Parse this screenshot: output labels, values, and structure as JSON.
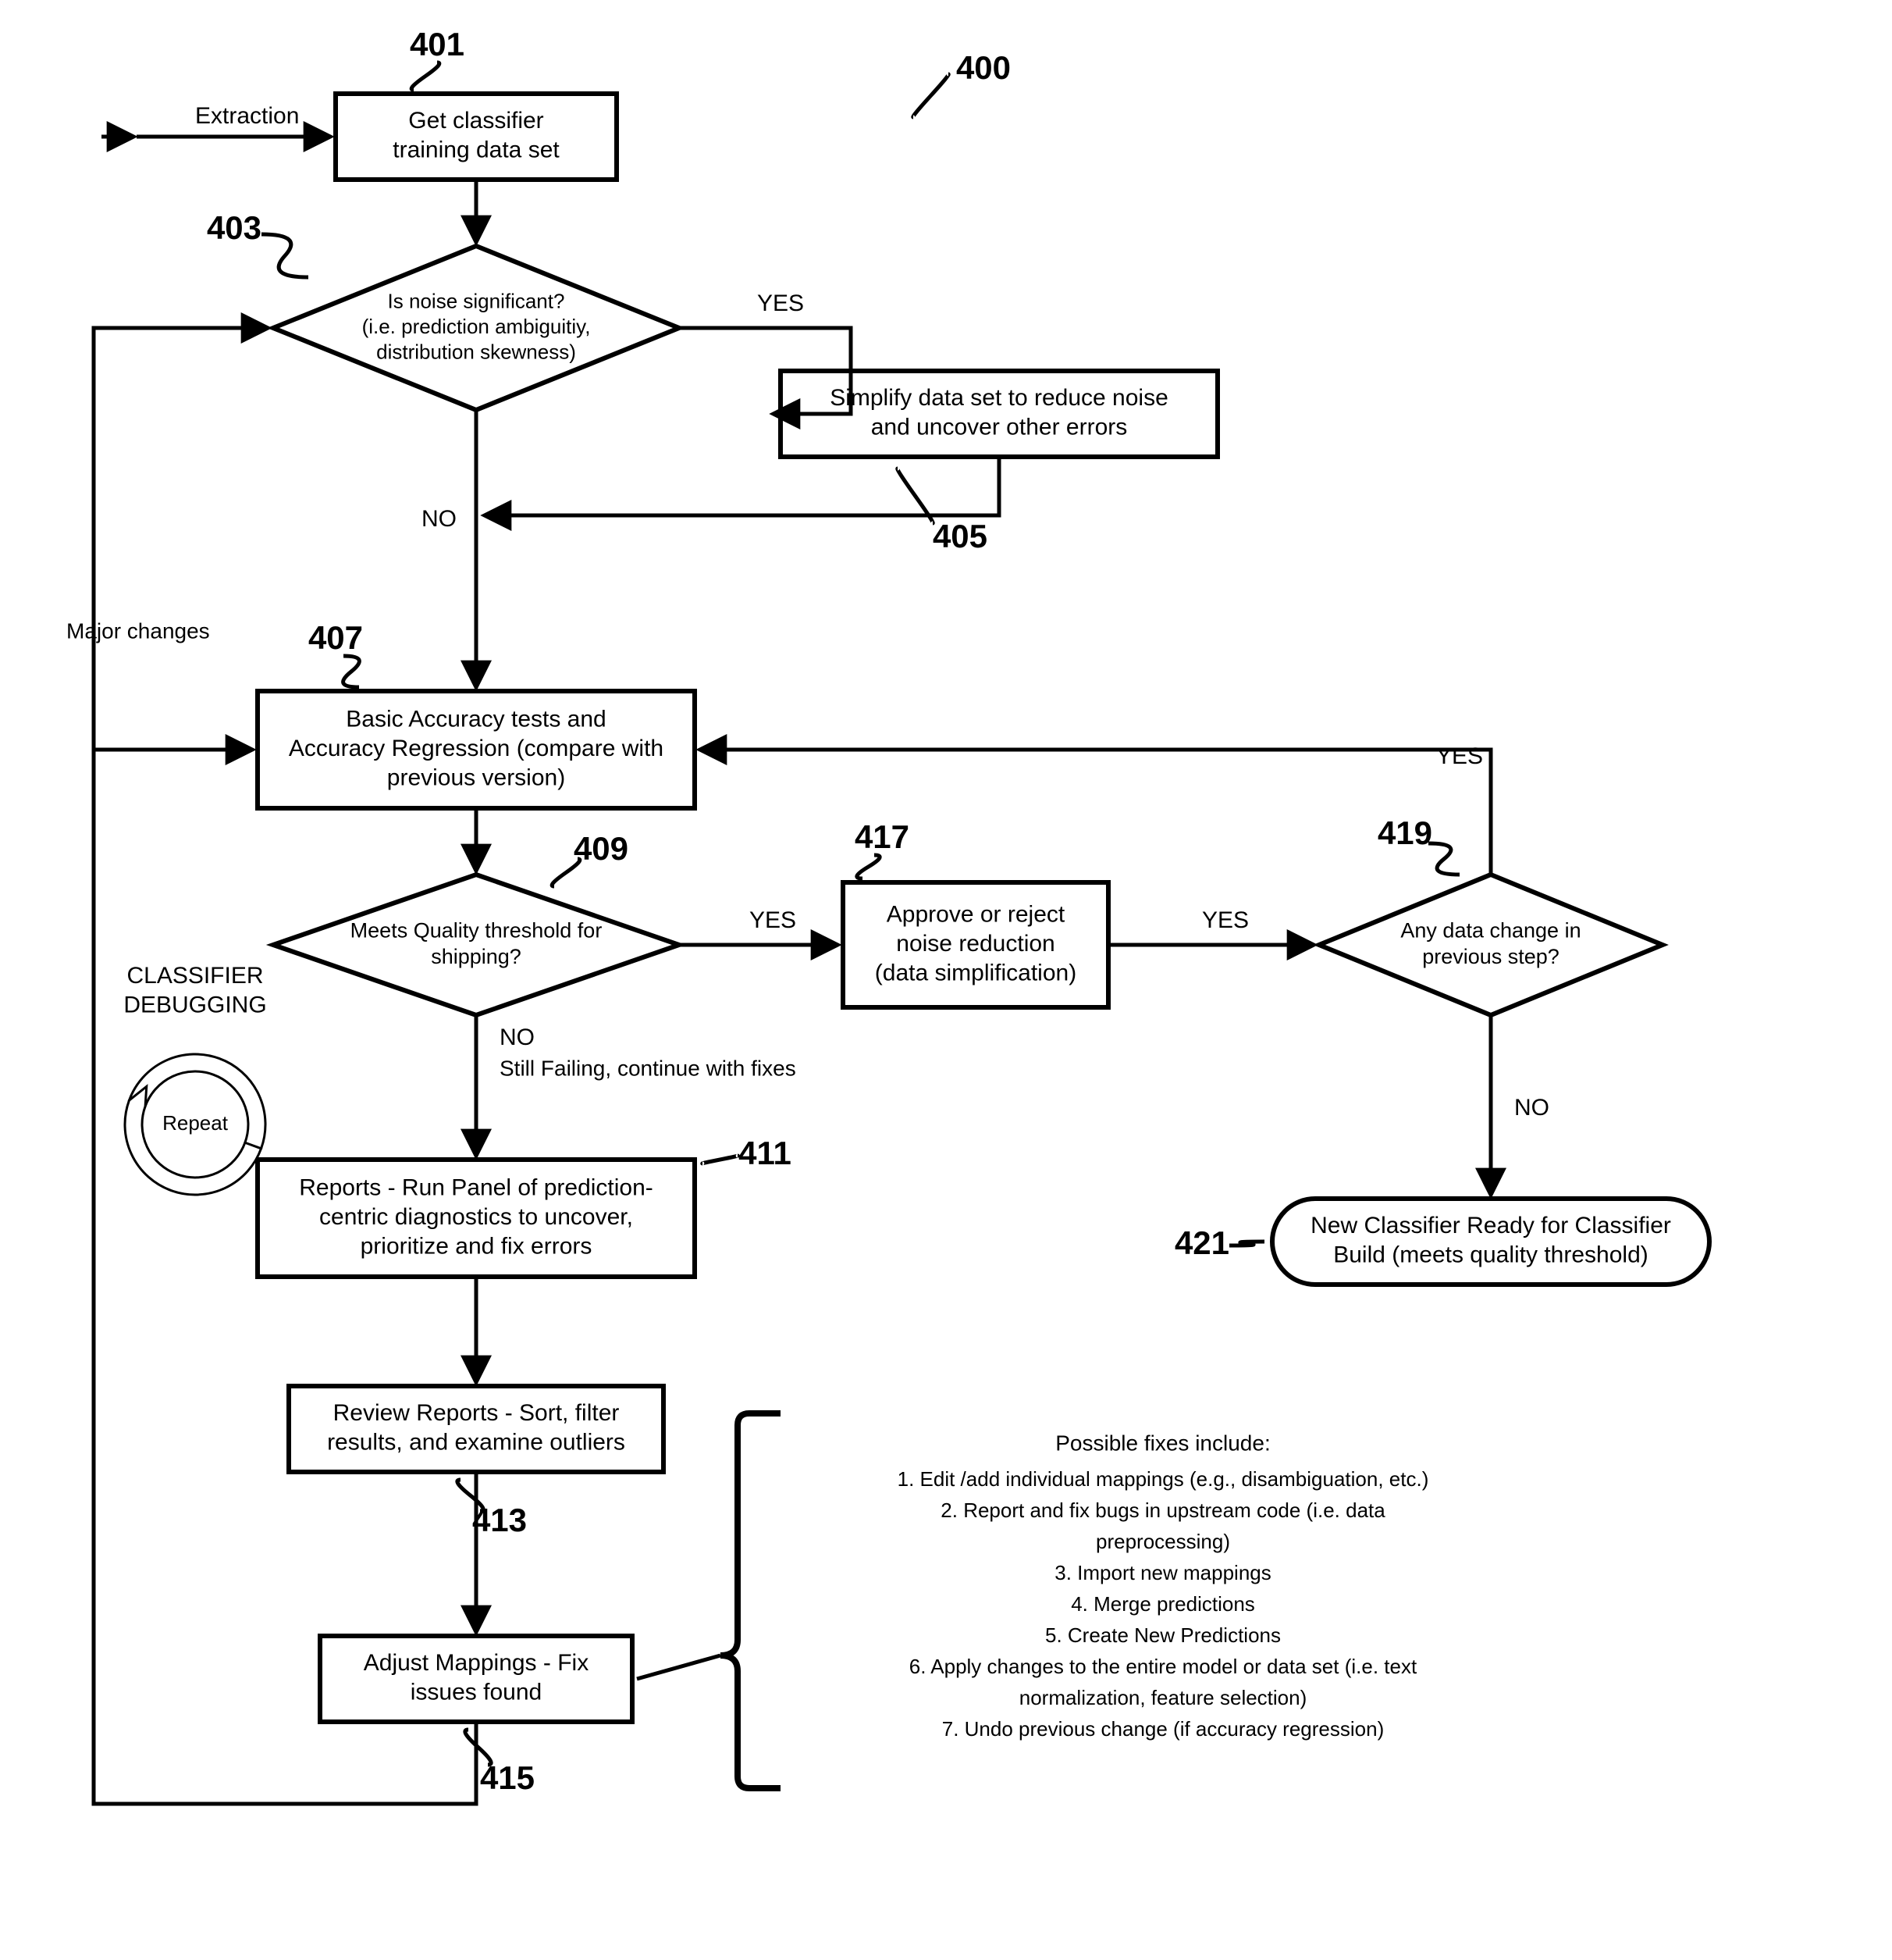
{
  "type": "flowchart",
  "background_color": "#ffffff",
  "stroke_color": "#000000",
  "box_stroke_width": 6,
  "edge_stroke_width": 5,
  "font_family": "Comic Sans MS",
  "font_sizes": {
    "ref": 42,
    "node": 30,
    "edge": 30,
    "side": 28,
    "fixes_title": 28,
    "fixes_item": 26
  },
  "diagram_ref": {
    "text": "400",
    "leader": true
  },
  "input_label": "Extraction",
  "nodes": {
    "n401": {
      "ref": "401",
      "shape": "rect",
      "lines": [
        "Get classifier",
        "training data set"
      ]
    },
    "n403": {
      "ref": "403",
      "shape": "diamond",
      "lines": [
        "Is noise significant?",
        "(i.e. prediction ambiguitiy,",
        "distribution skewness)"
      ]
    },
    "n405": {
      "ref": "405",
      "shape": "rect",
      "lines": [
        "Simplify data set to reduce noise",
        "and uncover other errors"
      ]
    },
    "n407": {
      "ref": "407",
      "shape": "rect",
      "lines": [
        "Basic Accuracy tests and",
        "Accuracy Regression (compare with",
        "previous version)"
      ]
    },
    "n409": {
      "ref": "409",
      "shape": "diamond",
      "lines": [
        "Meets Quality threshold for",
        "shipping?"
      ]
    },
    "n411": {
      "ref": "411",
      "shape": "rect",
      "lines": [
        "Reports - Run Panel of prediction-",
        "centric diagnostics to uncover,",
        "prioritize and fix errors"
      ]
    },
    "n413": {
      "ref": "413",
      "shape": "rect",
      "lines": [
        "Review Reports - Sort, filter",
        "results, and examine outliers"
      ]
    },
    "n415": {
      "ref": "415",
      "shape": "rect",
      "lines": [
        "Adjust Mappings - Fix",
        "issues found"
      ]
    },
    "n417": {
      "ref": "417",
      "shape": "rect",
      "lines": [
        "Approve or reject",
        "noise reduction",
        "(data simplification)"
      ]
    },
    "n419": {
      "ref": "419",
      "shape": "diamond",
      "lines": [
        "Any data change in",
        "previous step?"
      ]
    },
    "n421": {
      "ref": "421",
      "shape": "pill",
      "lines": [
        "New Classifier Ready for Classifier",
        "Build (meets quality threshold)"
      ]
    }
  },
  "edge_labels": {
    "yes": "YES",
    "no": "NO",
    "still_failing": "Still Failing, continue with fixes",
    "major_changes": "Major changes"
  },
  "side_labels": {
    "debug_title": "CLASSIFIER\nDEBUGGING",
    "repeat": "Repeat"
  },
  "fixes": {
    "title": "Possible fixes include:",
    "items": [
      "1. Edit /add individual mappings (e.g., disambiguation, etc.)",
      "2. Report and fix bugs in upstream code (i.e. data",
      "preprocessing)",
      "3. Import new mappings",
      "4. Merge predictions",
      "5. Create New Predictions",
      "6. Apply changes to the entire model or data set (i.e. text",
      "normalization, feature selection)",
      "7. Undo previous change (if accuracy regression)"
    ]
  }
}
